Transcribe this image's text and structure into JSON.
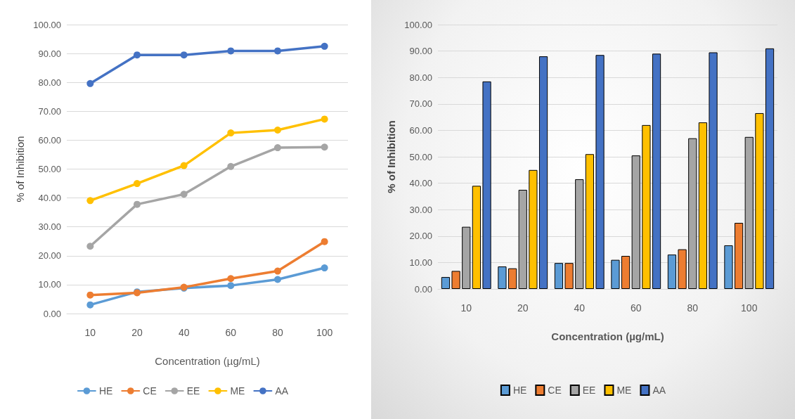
{
  "chart_data": [
    {
      "type": "line",
      "xlabel": "Concentration (µg/mL)",
      "ylabel": "% of Inhibition",
      "categories": [
        "10",
        "20",
        "40",
        "60",
        "80",
        "100"
      ],
      "series": [
        {
          "name": "HE",
          "color": "#5b9bd5",
          "values": [
            3.0,
            7.5,
            8.8,
            9.7,
            11.8,
            15.8
          ]
        },
        {
          "name": "CE",
          "color": "#ed7d31",
          "values": [
            6.4,
            7.2,
            9.1,
            12.1,
            14.7,
            24.9
          ]
        },
        {
          "name": "EE",
          "color": "#a5a5a5",
          "values": [
            23.3,
            37.8,
            41.3,
            50.9,
            57.4,
            57.6
          ]
        },
        {
          "name": "ME",
          "color": "#ffc000",
          "values": [
            39.1,
            45.0,
            51.2,
            62.5,
            63.5,
            67.3
          ]
        },
        {
          "name": "AA",
          "color": "#4472c4",
          "values": [
            79.6,
            89.5,
            89.5,
            90.9,
            90.9,
            92.5
          ]
        }
      ],
      "ylim": [
        0,
        100
      ],
      "yticks": [
        {
          "value": 0,
          "label": "0.00"
        },
        {
          "value": 10,
          "label": "10.00"
        },
        {
          "value": 20,
          "label": "20.00"
        },
        {
          "value": 30,
          "label": "30.00"
        },
        {
          "value": 40,
          "label": "40.00"
        },
        {
          "value": 50,
          "label": "50.00"
        },
        {
          "value": 60,
          "label": "60.00"
        },
        {
          "value": 70,
          "label": "70.00"
        },
        {
          "value": 80,
          "label": "80.00"
        },
        {
          "value": 90,
          "label": "90.00"
        },
        {
          "value": 100,
          "label": "100.00"
        }
      ],
      "grid": "y",
      "legend": "bottom",
      "marker": "circle",
      "line_style": "solid"
    },
    {
      "type": "bar",
      "xlabel": "Concentration (µg/mL)",
      "ylabel": "% of Inhibition",
      "categories": [
        "10",
        "20",
        "40",
        "60",
        "80",
        "100"
      ],
      "series": [
        {
          "name": "HE",
          "color": "#5b9bd5",
          "values": [
            4.5,
            8.5,
            9.8,
            11.0,
            13.0,
            16.5
          ]
        },
        {
          "name": "CE",
          "color": "#ed7d31",
          "values": [
            6.8,
            7.8,
            9.8,
            12.5,
            15.0,
            25.0
          ]
        },
        {
          "name": "EE",
          "color": "#a5a5a5",
          "values": [
            23.5,
            37.5,
            41.5,
            50.5,
            57.0,
            57.5
          ]
        },
        {
          "name": "ME",
          "color": "#ffc000",
          "values": [
            39.0,
            45.0,
            51.0,
            62.0,
            63.0,
            66.5
          ]
        },
        {
          "name": "AA",
          "color": "#4472c4",
          "values": [
            78.5,
            88.0,
            88.5,
            89.0,
            89.5,
            91.0
          ]
        }
      ],
      "ylim": [
        0,
        100
      ],
      "yticks": [
        {
          "value": 0,
          "label": "0.00"
        },
        {
          "value": 10,
          "label": "10.00"
        },
        {
          "value": 20,
          "label": "20.00"
        },
        {
          "value": 30,
          "label": "30.00"
        },
        {
          "value": 40,
          "label": "40.00"
        },
        {
          "value": 50,
          "label": "50.00"
        },
        {
          "value": 60,
          "label": "60.00"
        },
        {
          "value": 70,
          "label": "70.00"
        },
        {
          "value": 80,
          "label": "80.00"
        },
        {
          "value": 90,
          "label": "90.00"
        },
        {
          "value": 100,
          "label": "100.00"
        }
      ],
      "grid": "y",
      "legend": "bottom"
    }
  ]
}
